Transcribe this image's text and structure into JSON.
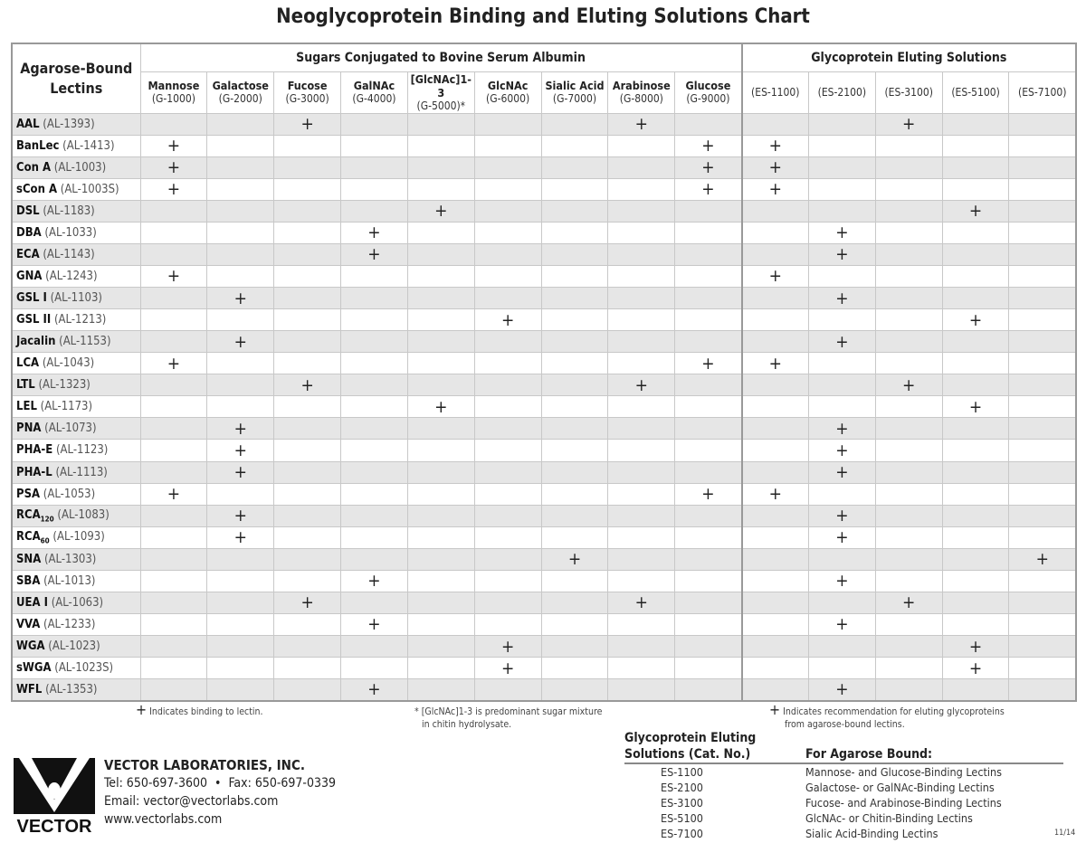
{
  "title": "Neoglycoprotein Binding and Eluting Solutions Chart",
  "header": {
    "lectins": "Agarose-Bound Lectins",
    "sugars_group": "Sugars Conjugated to Bovine Serum Albumin",
    "eluting_group": "Glycoprotein Eluting Solutions"
  },
  "sugars": [
    {
      "name": "Mannose",
      "code": "(G-1000)"
    },
    {
      "name": "Galactose",
      "code": "(G-2000)"
    },
    {
      "name": "Fucose",
      "code": "(G-3000)"
    },
    {
      "name": "GalNAc",
      "code": "(G-4000)"
    },
    {
      "name": "[GlcNAc]1-3",
      "code": "(G-5000)*"
    },
    {
      "name": "GlcNAc",
      "code": "(G-6000)"
    },
    {
      "name": "Sialic Acid",
      "code": "(G-7000)"
    },
    {
      "name": "Arabinose",
      "code": "(G-8000)"
    },
    {
      "name": "Glucose",
      "code": "(G-9000)"
    }
  ],
  "eluting": [
    "(ES-1100)",
    "(ES-2100)",
    "(ES-3100)",
    "(ES-5100)",
    "(ES-7100)"
  ],
  "mark_symbol": "+",
  "lectins": [
    {
      "name": "AAL",
      "code": "(AL-1393)",
      "sugars": [
        2,
        7
      ],
      "eluting": [
        2
      ]
    },
    {
      "name": "BanLec",
      "code": "(AL-1413)",
      "sugars": [
        0,
        8
      ],
      "eluting": [
        0
      ]
    },
    {
      "name": "Con A",
      "code": "(AL-1003)",
      "sugars": [
        0,
        8
      ],
      "eluting": [
        0
      ]
    },
    {
      "name": "sCon A",
      "code": "(AL-1003S)",
      "sugars": [
        0,
        8
      ],
      "eluting": [
        0
      ]
    },
    {
      "name": "DSL",
      "code": "(AL-1183)",
      "sugars": [
        4
      ],
      "eluting": [
        3
      ]
    },
    {
      "name": "DBA",
      "code": "(AL-1033)",
      "sugars": [
        3
      ],
      "eluting": [
        1
      ]
    },
    {
      "name": "ECA",
      "code": "(AL-1143)",
      "sugars": [
        3
      ],
      "eluting": [
        1
      ]
    },
    {
      "name": "GNA",
      "code": "(AL-1243)",
      "sugars": [
        0
      ],
      "eluting": [
        0
      ]
    },
    {
      "name": "GSL I",
      "code": "(AL-1103)",
      "sugars": [
        1
      ],
      "eluting": [
        1
      ]
    },
    {
      "name": "GSL II",
      "code": "(AL-1213)",
      "sugars": [
        5
      ],
      "eluting": [
        3
      ]
    },
    {
      "name": "Jacalin",
      "code": "(AL-1153)",
      "sugars": [
        1
      ],
      "eluting": [
        1
      ]
    },
    {
      "name": "LCA",
      "code": "(AL-1043)",
      "sugars": [
        0,
        8
      ],
      "eluting": [
        0
      ]
    },
    {
      "name": "LTL",
      "code": "(AL-1323)",
      "sugars": [
        2,
        7
      ],
      "eluting": [
        2
      ]
    },
    {
      "name": "LEL",
      "code": "(AL-1173)",
      "sugars": [
        4
      ],
      "eluting": [
        3
      ]
    },
    {
      "name": "PNA",
      "code": "(AL-1073)",
      "sugars": [
        1
      ],
      "eluting": [
        1
      ]
    },
    {
      "name": "PHA-E",
      "code": "(AL-1123)",
      "sugars": [
        1
      ],
      "eluting": [
        1
      ]
    },
    {
      "name": "PHA-L",
      "code": "(AL-1113)",
      "sugars": [
        1
      ],
      "eluting": [
        1
      ]
    },
    {
      "name": "PSA",
      "code": "(AL-1053)",
      "sugars": [
        0,
        8
      ],
      "eluting": [
        0
      ]
    },
    {
      "name": "RCA",
      "sub": "120",
      "code": "(AL-1083)",
      "sugars": [
        1
      ],
      "eluting": [
        1
      ]
    },
    {
      "name": "RCA",
      "sub": "60",
      "code": "(AL-1093)",
      "sugars": [
        1
      ],
      "eluting": [
        1
      ]
    },
    {
      "name": "SNA",
      "code": "(AL-1303)",
      "sugars": [
        6
      ],
      "eluting": [
        4
      ]
    },
    {
      "name": "SBA",
      "code": "(AL-1013)",
      "sugars": [
        3
      ],
      "eluting": [
        1
      ]
    },
    {
      "name": "UEA I",
      "code": "(AL-1063)",
      "sugars": [
        2,
        7
      ],
      "eluting": [
        2
      ]
    },
    {
      "name": "VVA",
      "code": "(AL-1233)",
      "sugars": [
        3
      ],
      "eluting": [
        1
      ]
    },
    {
      "name": "WGA",
      "code": "(AL-1023)",
      "sugars": [
        5
      ],
      "eluting": [
        3
      ]
    },
    {
      "name": "sWGA",
      "code": "(AL-1023S)",
      "sugars": [
        5
      ],
      "eluting": [
        3
      ]
    },
    {
      "name": "WFL",
      "code": "(AL-1353)",
      "sugars": [
        3
      ],
      "eluting": [
        1
      ]
    }
  ],
  "notes": {
    "binding": "Indicates binding to lectin.",
    "glcnac_line1": "* [GlcNAc]1-3 is predominant sugar mixture",
    "glcnac_line2": "in chitin hydrolysate.",
    "eluting_line1": "Indicates recommendation for eluting glycoproteins",
    "eluting_line2": "from agarose-bound lectins."
  },
  "company": {
    "logo_text": "VECTOR",
    "name": "VECTOR LABORATORIES, INC.",
    "phone": "Tel: 650-697-3600  •  Fax: 650-697-0339",
    "email": "Email: vector@vectorlabs.com",
    "web": "www.vectorlabs.com"
  },
  "eluting_table": {
    "col1_line1": "Glycoprotein Eluting",
    "col1_line2": "Solutions (Cat. No.)",
    "col2": "For Agarose Bound:",
    "rows": [
      [
        "ES-1100",
        "Mannose- and Glucose-Binding Lectins"
      ],
      [
        "ES-2100",
        "Galactose- or GalNAc-Binding Lectins"
      ],
      [
        "ES-3100",
        "Fucose- and Arabinose-Binding Lectins"
      ],
      [
        "ES-5100",
        "GlcNAc- or Chitin-Binding Lectins"
      ],
      [
        "ES-7100",
        "Sialic Acid-Binding Lectins"
      ]
    ]
  },
  "version": "11/14"
}
